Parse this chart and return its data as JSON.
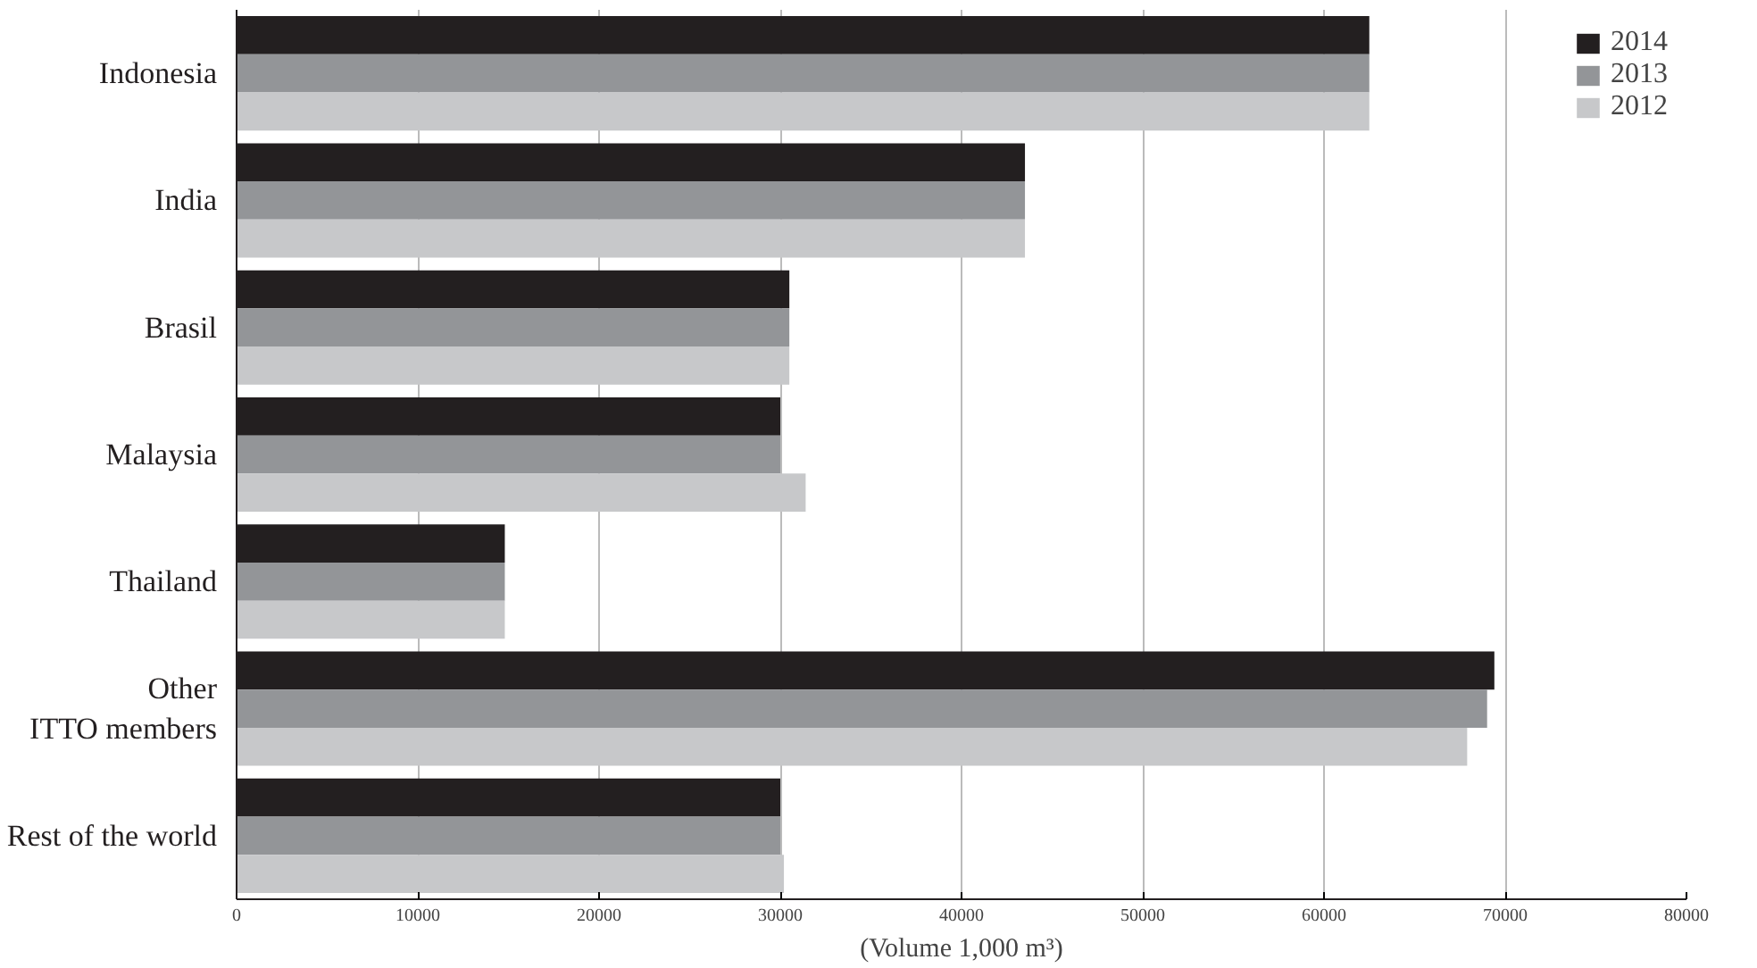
{
  "chart_data": {
    "type": "bar",
    "orientation": "horizontal",
    "xlabel": "(Volume 1,000 m³)",
    "categories": [
      "Indonesia",
      "India",
      "Brasil",
      "Malaysia",
      "Thailand",
      "Other\nITTO members",
      "Rest of the world"
    ],
    "series": [
      {
        "name": "2014",
        "color": "#231f20",
        "values": [
          62500,
          43500,
          30500,
          30000,
          14800,
          69400,
          30000
        ]
      },
      {
        "name": "2013",
        "color": "#939598",
        "values": [
          62500,
          43500,
          30500,
          30000,
          14800,
          69000,
          30000
        ]
      },
      {
        "name": "2012",
        "color": "#c7c8ca",
        "values": [
          62500,
          43500,
          30500,
          31400,
          14800,
          67900,
          30200
        ]
      }
    ],
    "xlim": [
      0,
      80000
    ],
    "xticks": [
      0,
      10000,
      20000,
      30000,
      40000,
      50000,
      60000,
      70000,
      80000
    ],
    "grid": "x",
    "legend": "top right"
  }
}
